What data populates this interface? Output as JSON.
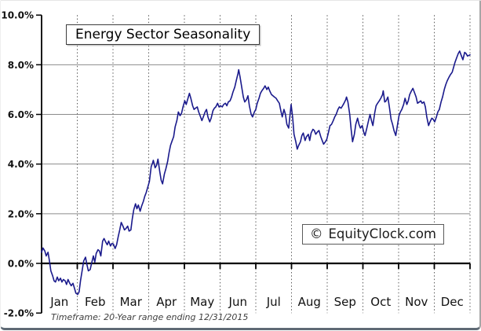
{
  "header": {
    "title": "Energy Sector Seasonality"
  },
  "watermark": {
    "symbol": "©",
    "text": "EquityClock.com"
  },
  "footer": {
    "note": "Timeframe: 20-Year range ending 12/31/2015"
  },
  "chart_data": {
    "type": "line",
    "title": "Energy Sector Seasonality",
    "xlabel": "",
    "ylabel": "",
    "x_axis": {
      "categories": [
        "Jan",
        "Feb",
        "Mar",
        "Apr",
        "May",
        "Jun",
        "Jul",
        "Aug",
        "Sep",
        "Oct",
        "Nov",
        "Dec"
      ],
      "range_months": [
        0,
        12
      ],
      "grid": "dotted"
    },
    "y_axis": {
      "unit": "%",
      "ylim": [
        -2,
        10
      ],
      "tick_values": [
        10,
        8,
        6,
        4,
        2,
        0,
        -2
      ],
      "tick_labels": [
        "10.0%",
        "8.0%",
        "6.0%",
        "4.0%",
        "2.0%",
        "0.0%",
        "-2.0%"
      ],
      "gridline_values": [
        8,
        6,
        4,
        2
      ],
      "zero_axis": true,
      "grid": "solid"
    },
    "legend": "none",
    "line_color": "#1a1a8c",
    "series": [
      {
        "name": "Energy Sector Seasonality",
        "x_unit": "month_fraction (0 = Jan 1, 12 = Dec 31)",
        "y_unit": "cumulative gain %",
        "points": [
          [
            0.0,
            0.45
          ],
          [
            0.04,
            0.62
          ],
          [
            0.09,
            0.5
          ],
          [
            0.13,
            0.3
          ],
          [
            0.18,
            0.45
          ],
          [
            0.22,
            0.1
          ],
          [
            0.26,
            -0.3
          ],
          [
            0.31,
            -0.5
          ],
          [
            0.35,
            -0.7
          ],
          [
            0.39,
            -0.75
          ],
          [
            0.44,
            -0.55
          ],
          [
            0.48,
            -0.7
          ],
          [
            0.53,
            -0.6
          ],
          [
            0.57,
            -0.75
          ],
          [
            0.61,
            -0.65
          ],
          [
            0.66,
            -0.7
          ],
          [
            0.7,
            -0.85
          ],
          [
            0.74,
            -0.65
          ],
          [
            0.79,
            -0.8
          ],
          [
            0.83,
            -0.9
          ],
          [
            0.88,
            -0.8
          ],
          [
            0.92,
            -1.0
          ],
          [
            0.96,
            -1.2
          ],
          [
            1.01,
            -1.25
          ],
          [
            1.05,
            -1.15
          ],
          [
            1.09,
            -0.7
          ],
          [
            1.14,
            -0.25
          ],
          [
            1.18,
            0.1
          ],
          [
            1.23,
            0.25
          ],
          [
            1.27,
            -0.05
          ],
          [
            1.31,
            -0.3
          ],
          [
            1.36,
            -0.25
          ],
          [
            1.4,
            0.0
          ],
          [
            1.45,
            0.3
          ],
          [
            1.49,
            0.05
          ],
          [
            1.53,
            0.4
          ],
          [
            1.58,
            0.55
          ],
          [
            1.62,
            0.5
          ],
          [
            1.66,
            0.3
          ],
          [
            1.71,
            0.9
          ],
          [
            1.75,
            1.0
          ],
          [
            1.8,
            0.85
          ],
          [
            1.84,
            0.75
          ],
          [
            1.88,
            0.9
          ],
          [
            1.93,
            0.7
          ],
          [
            1.97,
            0.8
          ],
          [
            2.01,
            0.78
          ],
          [
            2.06,
            0.6
          ],
          [
            2.1,
            0.75
          ],
          [
            2.15,
            1.1
          ],
          [
            2.19,
            1.35
          ],
          [
            2.23,
            1.65
          ],
          [
            2.28,
            1.5
          ],
          [
            2.32,
            1.35
          ],
          [
            2.36,
            1.4
          ],
          [
            2.41,
            1.5
          ],
          [
            2.45,
            1.3
          ],
          [
            2.5,
            1.35
          ],
          [
            2.54,
            1.8
          ],
          [
            2.58,
            2.15
          ],
          [
            2.63,
            2.4
          ],
          [
            2.67,
            2.2
          ],
          [
            2.71,
            2.35
          ],
          [
            2.76,
            2.1
          ],
          [
            2.8,
            2.3
          ],
          [
            2.85,
            2.5
          ],
          [
            2.89,
            2.7
          ],
          [
            2.93,
            2.85
          ],
          [
            2.98,
            3.1
          ],
          [
            3.02,
            3.3
          ],
          [
            3.07,
            3.9
          ],
          [
            3.11,
            4.05
          ],
          [
            3.13,
            4.15
          ],
          [
            3.18,
            3.85
          ],
          [
            3.22,
            3.95
          ],
          [
            3.26,
            4.2
          ],
          [
            3.31,
            3.7
          ],
          [
            3.35,
            3.35
          ],
          [
            3.39,
            3.2
          ],
          [
            3.44,
            3.6
          ],
          [
            3.48,
            3.8
          ],
          [
            3.53,
            4.1
          ],
          [
            3.57,
            4.45
          ],
          [
            3.61,
            4.75
          ],
          [
            3.66,
            4.95
          ],
          [
            3.7,
            5.1
          ],
          [
            3.74,
            5.5
          ],
          [
            3.79,
            5.75
          ],
          [
            3.83,
            6.1
          ],
          [
            3.88,
            5.95
          ],
          [
            3.92,
            6.05
          ],
          [
            3.96,
            6.3
          ],
          [
            4.01,
            6.55
          ],
          [
            4.05,
            6.4
          ],
          [
            4.09,
            6.6
          ],
          [
            4.14,
            6.85
          ],
          [
            4.18,
            6.65
          ],
          [
            4.23,
            6.35
          ],
          [
            4.27,
            6.2
          ],
          [
            4.31,
            6.25
          ],
          [
            4.36,
            6.3
          ],
          [
            4.4,
            6.1
          ],
          [
            4.44,
            5.95
          ],
          [
            4.49,
            5.75
          ],
          [
            4.53,
            5.9
          ],
          [
            4.58,
            6.1
          ],
          [
            4.62,
            6.2
          ],
          [
            4.66,
            5.9
          ],
          [
            4.71,
            5.7
          ],
          [
            4.75,
            5.85
          ],
          [
            4.8,
            6.15
          ],
          [
            4.84,
            6.25
          ],
          [
            4.88,
            6.3
          ],
          [
            4.93,
            6.45
          ],
          [
            4.97,
            6.3
          ],
          [
            5.01,
            6.35
          ],
          [
            5.06,
            6.3
          ],
          [
            5.1,
            6.4
          ],
          [
            5.15,
            6.45
          ],
          [
            5.19,
            6.35
          ],
          [
            5.23,
            6.5
          ],
          [
            5.28,
            6.55
          ],
          [
            5.32,
            6.7
          ],
          [
            5.36,
            6.9
          ],
          [
            5.41,
            7.1
          ],
          [
            5.45,
            7.35
          ],
          [
            5.5,
            7.65
          ],
          [
            5.52,
            7.8
          ],
          [
            5.56,
            7.5
          ],
          [
            5.61,
            7.05
          ],
          [
            5.65,
            6.7
          ],
          [
            5.69,
            6.5
          ],
          [
            5.74,
            6.6
          ],
          [
            5.78,
            6.75
          ],
          [
            5.82,
            6.35
          ],
          [
            5.87,
            6.0
          ],
          [
            5.91,
            5.9
          ],
          [
            5.96,
            6.1
          ],
          [
            6.0,
            6.2
          ],
          [
            6.04,
            6.45
          ],
          [
            6.09,
            6.65
          ],
          [
            6.13,
            6.85
          ],
          [
            6.17,
            6.95
          ],
          [
            6.22,
            7.05
          ],
          [
            6.26,
            7.15
          ],
          [
            6.31,
            7.0
          ],
          [
            6.35,
            7.1
          ],
          [
            6.39,
            6.95
          ],
          [
            6.44,
            6.8
          ],
          [
            6.48,
            6.75
          ],
          [
            6.52,
            6.7
          ],
          [
            6.57,
            6.65
          ],
          [
            6.61,
            6.55
          ],
          [
            6.66,
            6.45
          ],
          [
            6.7,
            6.15
          ],
          [
            6.74,
            5.9
          ],
          [
            6.79,
            6.2
          ],
          [
            6.83,
            6.0
          ],
          [
            6.87,
            5.6
          ],
          [
            6.92,
            5.45
          ],
          [
            6.96,
            6.0
          ],
          [
            6.99,
            6.4
          ],
          [
            7.03,
            5.9
          ],
          [
            7.07,
            5.2
          ],
          [
            7.12,
            4.9
          ],
          [
            7.16,
            4.6
          ],
          [
            7.2,
            4.75
          ],
          [
            7.25,
            4.9
          ],
          [
            7.29,
            5.15
          ],
          [
            7.33,
            5.25
          ],
          [
            7.38,
            4.95
          ],
          [
            7.42,
            5.1
          ],
          [
            7.47,
            5.2
          ],
          [
            7.51,
            4.95
          ],
          [
            7.55,
            5.25
          ],
          [
            7.6,
            5.4
          ],
          [
            7.64,
            5.35
          ],
          [
            7.68,
            5.2
          ],
          [
            7.73,
            5.3
          ],
          [
            7.77,
            5.35
          ],
          [
            7.82,
            5.1
          ],
          [
            7.86,
            4.95
          ],
          [
            7.9,
            4.8
          ],
          [
            7.95,
            4.9
          ],
          [
            7.99,
            5.0
          ],
          [
            8.04,
            5.3
          ],
          [
            8.08,
            5.55
          ],
          [
            8.12,
            5.6
          ],
          [
            8.17,
            5.75
          ],
          [
            8.21,
            5.9
          ],
          [
            8.25,
            6.0
          ],
          [
            8.3,
            6.2
          ],
          [
            8.34,
            6.3
          ],
          [
            8.39,
            6.25
          ],
          [
            8.43,
            6.35
          ],
          [
            8.47,
            6.45
          ],
          [
            8.52,
            6.6
          ],
          [
            8.54,
            6.7
          ],
          [
            8.58,
            6.5
          ],
          [
            8.63,
            6.0
          ],
          [
            8.67,
            5.4
          ],
          [
            8.71,
            4.9
          ],
          [
            8.76,
            5.2
          ],
          [
            8.8,
            5.6
          ],
          [
            8.85,
            5.85
          ],
          [
            8.89,
            5.6
          ],
          [
            8.93,
            5.45
          ],
          [
            8.98,
            5.55
          ],
          [
            9.02,
            5.3
          ],
          [
            9.06,
            5.15
          ],
          [
            9.11,
            5.45
          ],
          [
            9.15,
            5.7
          ],
          [
            9.2,
            6.0
          ],
          [
            9.24,
            5.75
          ],
          [
            9.28,
            5.55
          ],
          [
            9.33,
            6.05
          ],
          [
            9.37,
            6.35
          ],
          [
            9.41,
            6.45
          ],
          [
            9.46,
            6.55
          ],
          [
            9.5,
            6.65
          ],
          [
            9.55,
            6.8
          ],
          [
            9.57,
            6.95
          ],
          [
            9.61,
            6.5
          ],
          [
            9.65,
            6.55
          ],
          [
            9.7,
            6.7
          ],
          [
            9.74,
            6.3
          ],
          [
            9.79,
            5.8
          ],
          [
            9.83,
            5.6
          ],
          [
            9.87,
            5.35
          ],
          [
            9.92,
            5.15
          ],
          [
            9.96,
            5.5
          ],
          [
            10.01,
            5.95
          ],
          [
            10.05,
            6.1
          ],
          [
            10.09,
            6.2
          ],
          [
            10.14,
            6.4
          ],
          [
            10.18,
            6.65
          ],
          [
            10.23,
            6.4
          ],
          [
            10.27,
            6.55
          ],
          [
            10.31,
            6.8
          ],
          [
            10.36,
            6.95
          ],
          [
            10.4,
            7.05
          ],
          [
            10.44,
            6.9
          ],
          [
            10.49,
            6.7
          ],
          [
            10.53,
            6.45
          ],
          [
            10.58,
            6.5
          ],
          [
            10.62,
            6.55
          ],
          [
            10.66,
            6.45
          ],
          [
            10.71,
            6.5
          ],
          [
            10.75,
            6.3
          ],
          [
            10.79,
            5.9
          ],
          [
            10.84,
            5.55
          ],
          [
            10.88,
            5.7
          ],
          [
            10.93,
            5.85
          ],
          [
            10.97,
            5.8
          ],
          [
            11.01,
            5.7
          ],
          [
            11.06,
            5.9
          ],
          [
            11.1,
            6.1
          ],
          [
            11.14,
            6.2
          ],
          [
            11.19,
            6.5
          ],
          [
            11.23,
            6.7
          ],
          [
            11.28,
            7.0
          ],
          [
            11.32,
            7.2
          ],
          [
            11.36,
            7.35
          ],
          [
            11.41,
            7.5
          ],
          [
            11.45,
            7.6
          ],
          [
            11.5,
            7.7
          ],
          [
            11.54,
            7.9
          ],
          [
            11.58,
            8.1
          ],
          [
            11.63,
            8.3
          ],
          [
            11.67,
            8.45
          ],
          [
            11.71,
            8.55
          ],
          [
            11.76,
            8.35
          ],
          [
            11.8,
            8.2
          ],
          [
            11.85,
            8.5
          ],
          [
            11.89,
            8.45
          ],
          [
            11.93,
            8.35
          ],
          [
            12.0,
            8.4
          ]
        ]
      }
    ]
  }
}
